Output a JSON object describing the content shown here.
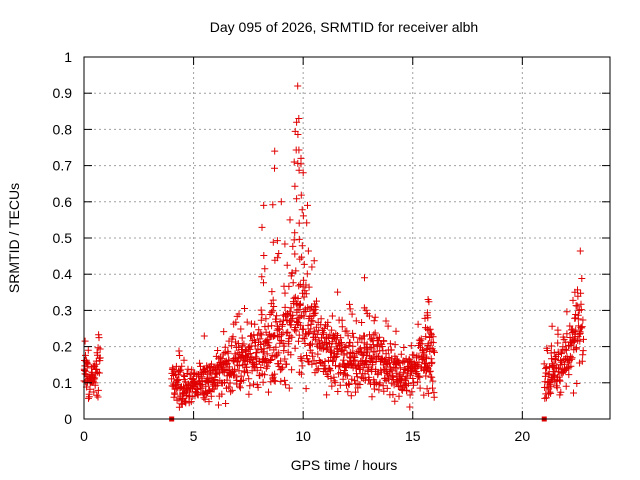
{
  "chart_data": {
    "type": "scatter",
    "title": "Day 095 of 2026, SRMTID for receiver albh",
    "xlabel": "GPS time / hours",
    "ylabel": "SRMTID / TECUs",
    "xlim": [
      0,
      24
    ],
    "ylim": [
      0,
      1
    ],
    "x_ticks": [
      0,
      5,
      10,
      15,
      20
    ],
    "x_tick_labels": [
      "0",
      "5",
      "10",
      "15",
      "20"
    ],
    "y_ticks": [
      0,
      0.1,
      0.2,
      0.3,
      0.4,
      0.5,
      0.6,
      0.7,
      0.8,
      0.9,
      1
    ],
    "y_tick_labels": [
      "0",
      "0.1",
      "0.2",
      "0.3",
      "0.4",
      "0.5",
      "0.6",
      "0.7",
      "0.8",
      "0.9",
      "1"
    ],
    "grid": true,
    "marker": "+",
    "color": "#e00000",
    "series": [
      {
        "name": "SRMTID",
        "segments": [
          {
            "x_start": 0.0,
            "x_end": 0.75,
            "trend": [
              [
                0.0,
                0.12
              ],
              [
                0.4,
                0.11
              ],
              [
                0.75,
                0.15
              ]
            ]
          },
          {
            "x_start": 4.0,
            "x_end": 16.0,
            "trend": [
              [
                4.0,
                0.12
              ],
              [
                4.5,
                0.08
              ],
              [
                5.0,
                0.1
              ],
              [
                6.0,
                0.12
              ],
              [
                7.0,
                0.15
              ],
              [
                8.0,
                0.18
              ],
              [
                9.0,
                0.22
              ],
              [
                9.7,
                0.3
              ],
              [
                10.0,
                0.24
              ],
              [
                11.0,
                0.18
              ],
              [
                12.0,
                0.16
              ],
              [
                13.0,
                0.17
              ],
              [
                14.0,
                0.13
              ],
              [
                15.0,
                0.12
              ],
              [
                15.5,
                0.16
              ],
              [
                16.0,
                0.15
              ]
            ]
          },
          {
            "x_start": 21.0,
            "x_end": 22.8,
            "trend": [
              [
                21.0,
                0.1
              ],
              [
                21.5,
                0.15
              ],
              [
                22.0,
                0.14
              ],
              [
                22.4,
                0.25
              ],
              [
                22.8,
                0.21
              ]
            ]
          }
        ],
        "peaks": [
          [
            8.2,
            0.59
          ],
          [
            8.7,
            0.74
          ],
          [
            9.0,
            0.6
          ],
          [
            9.4,
            0.55
          ],
          [
            9.7,
            0.82
          ],
          [
            9.75,
            0.92
          ],
          [
            9.8,
            0.83
          ],
          [
            9.9,
            0.72
          ],
          [
            10.0,
            0.68
          ],
          [
            10.2,
            0.59
          ],
          [
            10.4,
            0.42
          ],
          [
            12.8,
            0.39
          ],
          [
            15.7,
            0.33
          ],
          [
            22.4,
            0.35
          ]
        ],
        "zero_points": [
          [
            4.0,
            0.0
          ],
          [
            21.0,
            0.0
          ]
        ]
      }
    ]
  }
}
